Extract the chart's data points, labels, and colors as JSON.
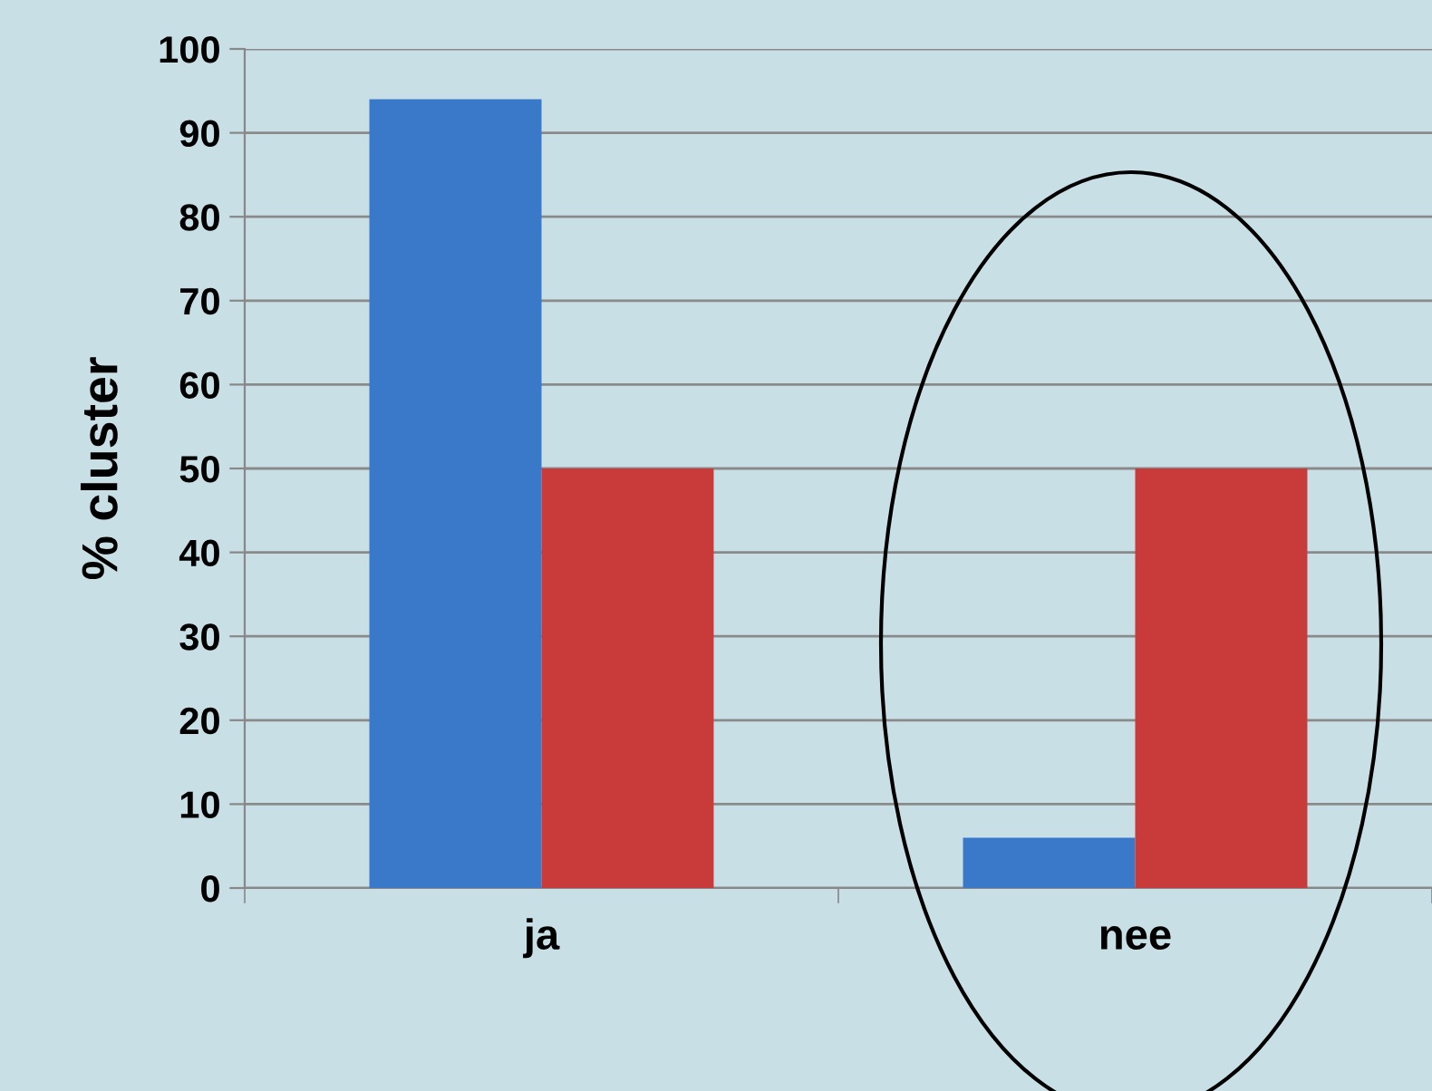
{
  "chart_data": {
    "type": "bar",
    "ylabel": "% cluster",
    "categories": [
      "ja",
      "nee"
    ],
    "series": [
      {
        "color": "#3a78c9",
        "values": [
          94,
          6
        ]
      },
      {
        "color": "#c93b3a",
        "values": [
          50,
          50
        ]
      }
    ],
    "ylim": [
      0,
      100
    ],
    "yticks": [
      0,
      10,
      20,
      30,
      40,
      50,
      60,
      70,
      80,
      90,
      100
    ],
    "grid": "y",
    "legend": false
  }
}
